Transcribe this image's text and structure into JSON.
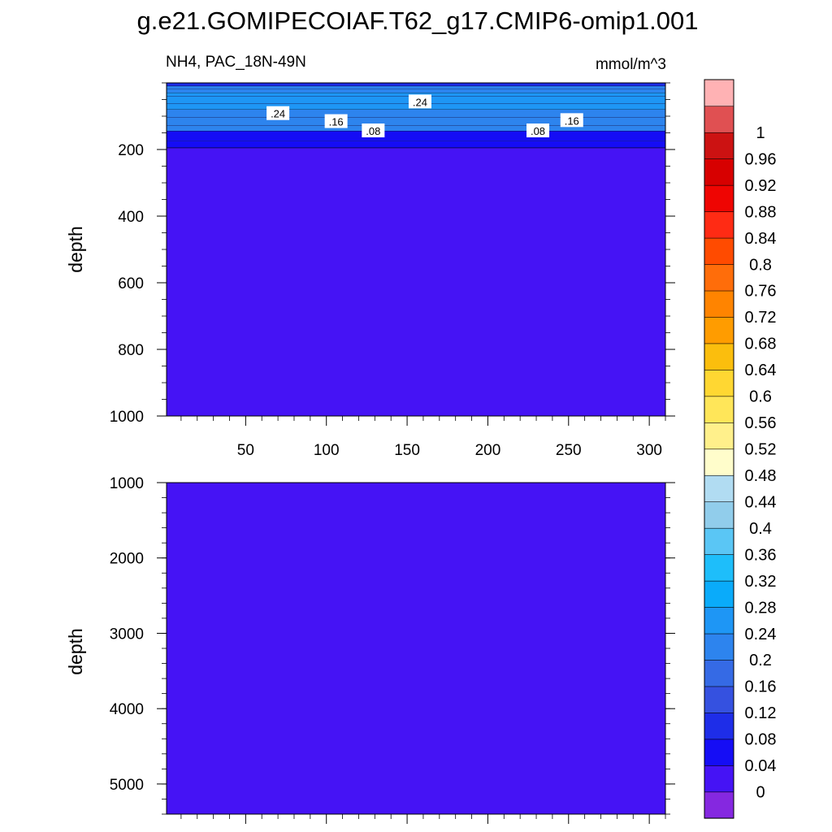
{
  "chart_data": {
    "type": "heatmap",
    "title": "g.e21.GOMIPECOIAF.T62_g17.CMIP6-omip1.001",
    "panel_left_label": "NH4, PAC_18N-49N",
    "units": "mmol/m^3",
    "panels": [
      {
        "name": "upper",
        "ylabel": "depth",
        "ylim": [
          0,
          1000
        ],
        "y_inverted": true,
        "xlim": [
          1,
          310
        ],
        "xticks": [
          "50",
          "100",
          "150",
          "200",
          "250",
          "300"
        ],
        "yticks": [
          "200",
          "400",
          "600",
          "800",
          "1000"
        ],
        "depth_structure": [
          {
            "from": 0,
            "to": 10,
            "value": 0.1
          },
          {
            "from": 10,
            "to": 30,
            "value": 0.2
          },
          {
            "from": 30,
            "to": 80,
            "value": 0.26
          },
          {
            "from": 80,
            "to": 145,
            "value": 0.2
          },
          {
            "from": 145,
            "to": 195,
            "value": 0.06
          },
          {
            "from": 195,
            "to": 1000,
            "value": 0.0
          }
        ],
        "contour_labels": [
          {
            "text": ".24",
            "x": 70,
            "depth": 92
          },
          {
            "text": ".24",
            "x": 158,
            "depth": 57
          },
          {
            "text": ".16",
            "x": 106,
            "depth": 116
          },
          {
            "text": ".16",
            "x": 252,
            "depth": 113
          },
          {
            "text": ".08",
            "x": 129,
            "depth": 144
          },
          {
            "text": ".08",
            "x": 231,
            "depth": 144
          }
        ]
      },
      {
        "name": "lower",
        "ylabel": "depth",
        "ylim": [
          1000,
          5400
        ],
        "y_inverted": true,
        "xlim": [
          1,
          310
        ],
        "xticks": [],
        "yticks": [
          "1000",
          "2000",
          "3000",
          "4000",
          "5000"
        ],
        "value": 0.0
      }
    ],
    "colorbar": {
      "labels": [
        "0",
        "0.04",
        "0.08",
        "0.12",
        "0.16",
        "0.2",
        "0.24",
        "0.28",
        "0.32",
        "0.36",
        "0.4",
        "0.44",
        "0.48",
        "0.52",
        "0.56",
        "0.6",
        "0.64",
        "0.68",
        "0.72",
        "0.76",
        "0.8",
        "0.84",
        "0.88",
        "0.92",
        "0.96",
        "1"
      ],
      "colors": [
        "#8528e0",
        "#4513f5",
        "#150df5",
        "#1e2de8",
        "#3551e0",
        "#356ae5",
        "#2d84ee",
        "#1e96f5",
        "#0aabfa",
        "#1ebefa",
        "#5ac6f5",
        "#91cdeb",
        "#b1dcf2",
        "#fffdcb",
        "#fff08b",
        "#ffe659",
        "#ffd732",
        "#fbbe0d",
        "#ff9c00",
        "#ff8400",
        "#ff6d0a",
        "#ff4b00",
        "#ff2b14",
        "#ef0502",
        "#d70000",
        "#cc1212",
        "#e05052",
        "#ffb2b4"
      ]
    }
  }
}
